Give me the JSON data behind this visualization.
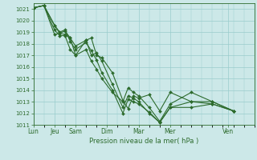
{
  "xlabel": "Pression niveau de la mer( hPa )",
  "bg_color": "#cce8e8",
  "grid_color": "#99cccc",
  "line_color": "#2d6b2d",
  "ylim": [
    1011,
    1021.5
  ],
  "yticks": [
    1011,
    1012,
    1013,
    1014,
    1015,
    1016,
    1017,
    1018,
    1019,
    1020,
    1021
  ],
  "day_labels": [
    "Lun",
    "Jeu",
    "Sam",
    "Dim",
    "Mar",
    "Mer",
    "Ven"
  ],
  "day_positions": [
    0,
    16,
    32,
    56,
    80,
    104,
    148
  ],
  "xlim": [
    0,
    168
  ],
  "series": [
    {
      "x": [
        0,
        8,
        16,
        20,
        24,
        28,
        32,
        40,
        44,
        48,
        52,
        60,
        68,
        72,
        76,
        80,
        88,
        96,
        104,
        120,
        136,
        152
      ],
      "y": [
        1021.1,
        1021.3,
        1019.6,
        1018.9,
        1018.8,
        1018.5,
        1017.8,
        1018.3,
        1018.5,
        1017.0,
        1016.8,
        1015.5,
        1013.1,
        1012.4,
        1013.5,
        1013.3,
        1013.6,
        1012.2,
        1013.8,
        1013.0,
        1012.8,
        1012.2
      ]
    },
    {
      "x": [
        0,
        8,
        16,
        20,
        24,
        28,
        32,
        40,
        44,
        48,
        52,
        60,
        68,
        72,
        76,
        80,
        88,
        96,
        104,
        120,
        136,
        152
      ],
      "y": [
        1021.1,
        1021.3,
        1018.8,
        1018.9,
        1019.1,
        1018.5,
        1017.0,
        1018.3,
        1017.0,
        1017.2,
        1016.5,
        1014.5,
        1012.5,
        1013.5,
        1013.3,
        1013.0,
        1012.0,
        1011.2,
        1012.5,
        1012.5,
        1012.8,
        1012.2
      ]
    },
    {
      "x": [
        0,
        8,
        16,
        20,
        24,
        28,
        32,
        40,
        44,
        48,
        52,
        60,
        68,
        72,
        76,
        80,
        88,
        96,
        104,
        120,
        136,
        152
      ],
      "y": [
        1021.1,
        1021.3,
        1019.6,
        1019.0,
        1019.2,
        1018.2,
        1017.5,
        1018.1,
        1017.4,
        1016.6,
        1015.5,
        1014.0,
        1012.0,
        1013.2,
        1013.0,
        1012.8,
        1012.1,
        1011.2,
        1012.5,
        1013.0,
        1013.0,
        1012.2
      ]
    },
    {
      "x": [
        0,
        8,
        16,
        20,
        24,
        28,
        32,
        40,
        44,
        48,
        52,
        60,
        68,
        72,
        76,
        80,
        88,
        96,
        104,
        120,
        136,
        152
      ],
      "y": [
        1021.1,
        1021.3,
        1019.2,
        1018.7,
        1018.7,
        1017.5,
        1017.0,
        1017.5,
        1016.5,
        1015.8,
        1015.0,
        1013.8,
        1013.0,
        1014.2,
        1013.8,
        1013.5,
        1012.5,
        1011.3,
        1012.8,
        1013.8,
        1013.0,
        1012.2
      ]
    }
  ]
}
